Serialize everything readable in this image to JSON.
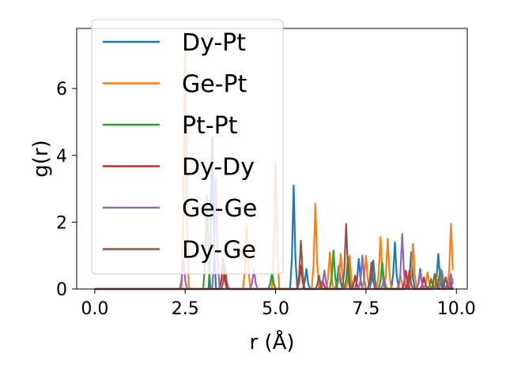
{
  "chart_data": {
    "type": "line",
    "title": "",
    "xlabel": "r (Å)",
    "ylabel": "g(r)",
    "xlim": [
      -0.5,
      10.3
    ],
    "ylim": [
      0,
      7.8
    ],
    "xticks": [
      0.0,
      2.5,
      5.0,
      7.5,
      10.0
    ],
    "xtick_labels": [
      "0.0",
      "2.5",
      "5.0",
      "7.5",
      "10.0"
    ],
    "yticks": [
      0,
      2,
      4,
      6
    ],
    "ytick_labels": [
      "0",
      "2",
      "4",
      "6"
    ],
    "grid": false,
    "legend_position": "top-left",
    "series": [
      {
        "name": "Dy-Pt",
        "color": "#1f77b4",
        "peaks": [
          [
            3.25,
            4.55
          ],
          [
            5.5,
            3.1
          ],
          [
            5.85,
            0.6
          ],
          [
            6.75,
            0.7
          ],
          [
            7.3,
            0.9
          ],
          [
            7.7,
            0.85
          ],
          [
            8.3,
            1.4
          ],
          [
            8.75,
            1.1
          ],
          [
            9.0,
            0.6
          ],
          [
            9.5,
            1.05
          ],
          [
            9.8,
            0.4
          ]
        ]
      },
      {
        "name": "Ge-Pt",
        "color": "#ff7f0e",
        "peaks": [
          [
            2.5,
            7.4
          ],
          [
            4.2,
            1.9
          ],
          [
            5.0,
            3.8
          ],
          [
            6.1,
            2.55
          ],
          [
            6.5,
            1.1
          ],
          [
            6.8,
            1.05
          ],
          [
            7.05,
            1.0
          ],
          [
            7.5,
            1.0
          ],
          [
            7.9,
            1.55
          ],
          [
            8.1,
            1.5
          ],
          [
            8.45,
            0.4
          ],
          [
            8.8,
            1.35
          ],
          [
            9.2,
            0.5
          ],
          [
            9.45,
            0.35
          ],
          [
            9.85,
            1.95
          ]
        ]
      },
      {
        "name": "Pt-Pt",
        "color": "#2ca02c",
        "peaks": [
          [
            3.1,
            2.8
          ],
          [
            4.9,
            0.5
          ],
          [
            6.6,
            1.15
          ],
          [
            7.0,
            0.95
          ],
          [
            7.95,
            0.8
          ],
          [
            9.3,
            0.3
          ],
          [
            9.55,
            0.6
          ]
        ]
      },
      {
        "name": "Dy-Dy",
        "color": "#d62728",
        "peaks": [
          [
            3.55,
            0.9
          ],
          [
            5.7,
            0.7
          ],
          [
            6.3,
            0.25
          ],
          [
            7.2,
            0.4
          ],
          [
            8.6,
            0.55
          ],
          [
            9.1,
            0.35
          ],
          [
            9.9,
            0.3
          ]
        ]
      },
      {
        "name": "Ge-Ge",
        "color": "#9467bd",
        "peaks": [
          [
            2.45,
            0.9
          ],
          [
            3.35,
            3.3
          ],
          [
            4.4,
            0.6
          ],
          [
            6.35,
            0.55
          ],
          [
            7.4,
            1.0
          ],
          [
            8.0,
            0.3
          ],
          [
            8.5,
            1.65
          ],
          [
            9.0,
            0.5
          ],
          [
            9.6,
            0.55
          ],
          [
            9.85,
            0.45
          ]
        ]
      },
      {
        "name": "Dy-Ge",
        "color": "#8c564b",
        "peaks": [
          [
            3.6,
            0.7
          ],
          [
            5.7,
            1.45
          ],
          [
            6.2,
            0.4
          ],
          [
            6.95,
            1.95
          ],
          [
            7.65,
            0.8
          ],
          [
            8.7,
            0.55
          ],
          [
            9.4,
            0.45
          ],
          [
            9.7,
            0.35
          ]
        ]
      }
    ]
  }
}
